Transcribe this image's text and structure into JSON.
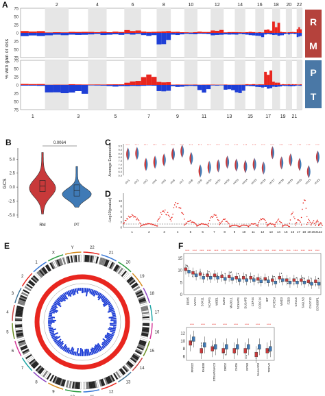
{
  "panels": {
    "A": "A",
    "B": "B",
    "C": "C",
    "D": "D",
    "E": "E",
    "F": "F"
  },
  "panel_a": {
    "ylabel": "% with gain or loss",
    "rm_tag": [
      "R",
      "M"
    ],
    "pt_tag": [
      "P",
      "T"
    ],
    "top_chroms": [
      "2",
      "4",
      "6",
      "8",
      "10",
      "12",
      "14",
      "16",
      "18",
      "20",
      "22"
    ],
    "bottom_chroms": [
      "1",
      "3",
      "5",
      "7",
      "9",
      "11",
      "13",
      "15",
      "17",
      "19",
      "21"
    ],
    "yticks": [
      "75",
      "50",
      "25",
      "0",
      "25",
      "50",
      "75"
    ],
    "gain_color": "#e8261f",
    "loss_color": "#1f3fd6"
  },
  "panel_b": {
    "ylabel": "GCS",
    "categories": [
      "RM",
      "PT"
    ],
    "pvalue": "0.0064",
    "yticks": [
      "5.0",
      "2.5",
      "0.0",
      "-2.5",
      "-5.0"
    ],
    "colors": [
      "#c8393a",
      "#3f7ab6"
    ]
  },
  "panel_c": {
    "ylabel": "Average Expression",
    "chroms": [
      "chr1",
      "chr2",
      "chr3",
      "chr4",
      "chr5",
      "chr6",
      "chr7",
      "chr8",
      "chr9",
      "chr10",
      "chr11",
      "chr12",
      "chr13",
      "chr14",
      "chr15",
      "chr16",
      "chr17",
      "chr18",
      "chr19",
      "chr20",
      "chr21",
      "chr22"
    ],
    "yticks": [
      "9.5",
      "9.0",
      "8.5",
      "8.0",
      "7.5",
      "7.0",
      "6.5",
      "6.0",
      "5.5"
    ]
  },
  "panel_d": {
    "ylabel": "-Log10(pvalue)",
    "yticks": [
      "10",
      "8",
      "6",
      "4",
      "2",
      "0"
    ],
    "xticks": [
      "1",
      "2",
      "3",
      "4",
      "5",
      "6",
      "7",
      "8",
      "9",
      "10",
      "11",
      "12",
      "13",
      "14",
      "15",
      "16",
      "17",
      "18",
      "19",
      "20",
      "21",
      "22"
    ]
  },
  "panel_e": {
    "labels": [
      "22",
      "21",
      "20",
      "19",
      "18",
      "17",
      "16",
      "15",
      "14",
      "13",
      "12",
      "11",
      "10",
      "9",
      "8",
      "7",
      "6",
      "5",
      "4",
      "3",
      "2",
      "1",
      "X",
      "Y"
    ]
  },
  "panel_f": {
    "top_genes": [
      "DDX5",
      "MYCN",
      "SOX11",
      "NCAPG",
      "WEE1",
      "EZH2",
      "MAD2L1",
      "NCKAPS",
      "DLGAP5",
      "CEP44",
      "CCDC14",
      "BIT",
      "POTEM",
      "MMD3",
      "FZD3",
      "CXCL5",
      "TAGLN3",
      "CNOT10",
      "CCNDBP1"
    ],
    "bottom_genes": [
      "PRR22",
      "RAB38",
      "STEAP/MAC3",
      "DRD2",
      "CHD5",
      "GPX8",
      "NAALAD3",
      "TRPV2"
    ],
    "top_yticks": [
      "15",
      "10",
      "5",
      "0"
    ],
    "bottom_yticks": [
      "12",
      "10",
      "8",
      "6"
    ],
    "stars": "****"
  },
  "chart_data": [
    {
      "type": "area",
      "title": "",
      "ylabel": "% with gain or loss",
      "panel": "A",
      "series": [
        {
          "name": "RM",
          "gain_by_chrom_1_22": [
            6,
            2,
            3,
            3,
            3,
            8,
            4,
            6,
            3,
            2,
            3,
            8,
            2,
            2,
            3,
            2,
            10,
            28,
            3,
            2,
            3,
            15
          ],
          "loss_by_chrom_1_22": [
            10,
            6,
            8,
            5,
            6,
            4,
            8,
            28,
            6,
            4,
            3,
            8,
            4,
            5,
            6,
            10,
            4,
            8,
            6,
            4,
            4,
            16
          ]
        },
        {
          "name": "PT",
          "gain_by_chrom_1_22": [
            3,
            1,
            2,
            2,
            2,
            10,
            26,
            8,
            1,
            1,
            1,
            1,
            1,
            1,
            2,
            2,
            48,
            8,
            2,
            2,
            2,
            2
          ],
          "loss_by_chrom_1_22": [
            3,
            20,
            22,
            2,
            4,
            3,
            2,
            15,
            6,
            3,
            18,
            2,
            15,
            20,
            4,
            8,
            10,
            8,
            4,
            4,
            3,
            2
          ]
        }
      ],
      "ylim": [
        -75,
        75
      ]
    },
    {
      "type": "violin",
      "panel": "B",
      "categories": [
        "RM",
        "PT"
      ],
      "medians": [
        0.2,
        -0.6
      ],
      "ranges": [
        [
          -4.8,
          6.2
        ],
        [
          -3.6,
          3.7
        ]
      ],
      "ylabel": "GCS",
      "pvalue": "0.0064"
    },
    {
      "type": "violin",
      "panel": "C",
      "x": [
        "chr1",
        "chr2",
        "chr3",
        "chr4",
        "chr5",
        "chr6",
        "chr7",
        "chr8",
        "chr9",
        "chr10",
        "chr11",
        "chr12",
        "chr13",
        "chr14",
        "chr15",
        "chr16",
        "chr17",
        "chr18",
        "chr19",
        "chr20",
        "chr21",
        "chr22"
      ],
      "mean_expression": [
        8.4,
        8.5,
        7.0,
        7.3,
        7.6,
        8.4,
        8.8,
        7.8,
        6.1,
        6.6,
        6.8,
        7.3,
        6.9,
        6.7,
        7.0,
        6.5,
        8.6,
        7.2,
        7.6,
        7.0,
        6.0,
        8.0
      ],
      "ylabel": "Average Expression",
      "ylim": [
        5.5,
        9.8
      ]
    },
    {
      "type": "scatter",
      "panel": "D",
      "ylabel": "-Log10(pvalue)",
      "x_chroms": [
        "1",
        "2",
        "3",
        "4",
        "5",
        "6",
        "7",
        "8",
        "9",
        "10",
        "11",
        "12",
        "13",
        "14",
        "15",
        "16",
        "17",
        "18",
        "19",
        "20",
        "21",
        "22"
      ],
      "peak_per_chrom": [
        4.5,
        1.5,
        6.5,
        9.5,
        2.5,
        1.5,
        5.0,
        3.0,
        1.0,
        1.0,
        1.5,
        3.5,
        1.5,
        3.0,
        1.0,
        5.5,
        3.0,
        12.5,
        3.0,
        2.5,
        3.0,
        2.0
      ],
      "ylim": [
        0,
        13
      ]
    },
    {
      "type": "circos",
      "panel": "E",
      "chromosomes": [
        "1",
        "2",
        "3",
        "4",
        "5",
        "6",
        "7",
        "8",
        "9",
        "10",
        "11",
        "12",
        "13",
        "14",
        "15",
        "16",
        "17",
        "18",
        "19",
        "20",
        "21",
        "22",
        "X",
        "Y"
      ]
    },
    {
      "type": "box",
      "panel": "F",
      "groups": [
        "top",
        "bottom"
      ],
      "top_genes": [
        "DDX5",
        "MYCN",
        "SOX11",
        "NCAPG",
        "WEE1",
        "EZH2",
        "MAD2L1",
        "NCKAPS",
        "DLGAP5",
        "CEP44",
        "CCDC14",
        "BIT",
        "POTEM",
        "MMD3",
        "FZD3",
        "CXCL5",
        "TAGLN3",
        "CNOT10",
        "CCNDBP1"
      ],
      "top_medians_RM": [
        10.5,
        9,
        8.5,
        8,
        8,
        7.5,
        7.5,
        7,
        7,
        7,
        6.5,
        6.5,
        6,
        7,
        6,
        6,
        6,
        5.5,
        5.5
      ],
      "top_medians_PT": [
        9.5,
        8,
        7,
        7,
        7,
        6.5,
        6.5,
        6,
        6,
        6,
        5.5,
        5.5,
        5,
        6,
        5,
        5,
        5,
        4.5,
        4.5
      ],
      "bottom_genes": [
        "PRR22",
        "RAB38",
        "STEAP/MAC3",
        "DRD2",
        "CHD5",
        "GPX8",
        "NAALAD3",
        "TRPV2"
      ],
      "bottom_medians_RM": [
        9.5,
        7.5,
        8,
        7.5,
        7.5,
        7.5,
        6.5,
        7.5
      ],
      "bottom_medians_PT": [
        10.5,
        9,
        8.5,
        8.5,
        8.5,
        8.5,
        8.5,
        8
      ]
    }
  ]
}
